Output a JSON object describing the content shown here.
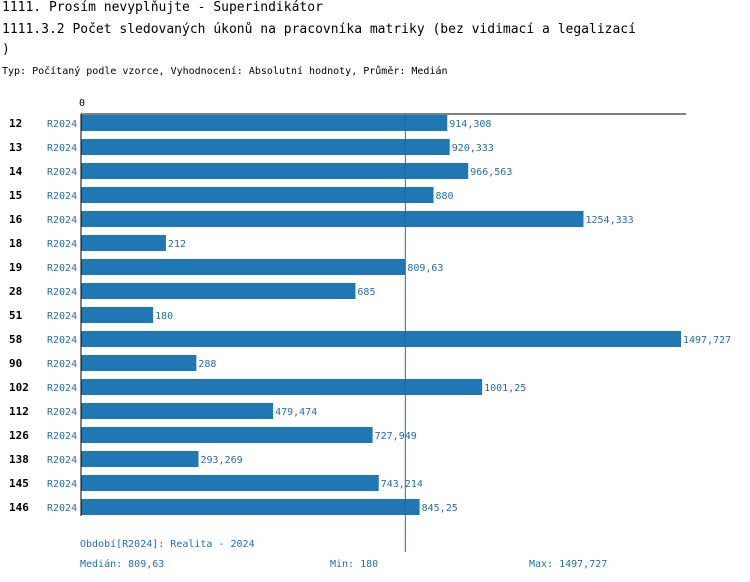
{
  "header": {
    "title": "1111. Prosím nevyplňujte - Superindikátor",
    "subtitle_line1": "1111.3.2 Počet sledovaných úkonů na pracovníka matriky (bez vidimací a legalizací",
    "subtitle_line2": ")",
    "info": "Typ: Počítaný podle vzorce, Vyhodnocení: Absolutní hodnoty, Průměr: Medián"
  },
  "colors": {
    "bar": "#1f77b4",
    "label": "#1f6fa8",
    "axis": "#000000",
    "median_line": "#1f6fa8"
  },
  "chart_data": {
    "type": "bar",
    "orientation": "horizontal",
    "axis_zero_label": "0",
    "xlim": [
      0,
      1497.727
    ],
    "median": 809.63,
    "rows": [
      {
        "id": "12",
        "period": "R2024",
        "value": 914.308,
        "label": "914,308"
      },
      {
        "id": "13",
        "period": "R2024",
        "value": 920.333,
        "label": "920,333"
      },
      {
        "id": "14",
        "period": "R2024",
        "value": 966.563,
        "label": "966,563"
      },
      {
        "id": "15",
        "period": "R2024",
        "value": 880,
        "label": "880"
      },
      {
        "id": "16",
        "period": "R2024",
        "value": 1254.333,
        "label": "1254,333"
      },
      {
        "id": "18",
        "period": "R2024",
        "value": 212,
        "label": "212"
      },
      {
        "id": "19",
        "period": "R2024",
        "value": 809.63,
        "label": "809,63"
      },
      {
        "id": "28",
        "period": "R2024",
        "value": 685,
        "label": "685"
      },
      {
        "id": "51",
        "period": "R2024",
        "value": 180,
        "label": "180"
      },
      {
        "id": "58",
        "period": "R2024",
        "value": 1497.727,
        "label": "1497,727"
      },
      {
        "id": "90",
        "period": "R2024",
        "value": 288,
        "label": "288"
      },
      {
        "id": "102",
        "period": "R2024",
        "value": 1001.25,
        "label": "1001,25"
      },
      {
        "id": "112",
        "period": "R2024",
        "value": 479.474,
        "label": "479,474"
      },
      {
        "id": "126",
        "period": "R2024",
        "value": 727.949,
        "label": "727,949"
      },
      {
        "id": "138",
        "period": "R2024",
        "value": 293.269,
        "label": "293,269"
      },
      {
        "id": "145",
        "period": "R2024",
        "value": 743.214,
        "label": "743,214"
      },
      {
        "id": "146",
        "period": "R2024",
        "value": 845.25,
        "label": "845,25"
      }
    ]
  },
  "footer": {
    "period": "Období[R2024]: Realita - 2024",
    "median": "Medián: 809,63",
    "min": "Min: 180",
    "max": "Max: 1497,727"
  }
}
